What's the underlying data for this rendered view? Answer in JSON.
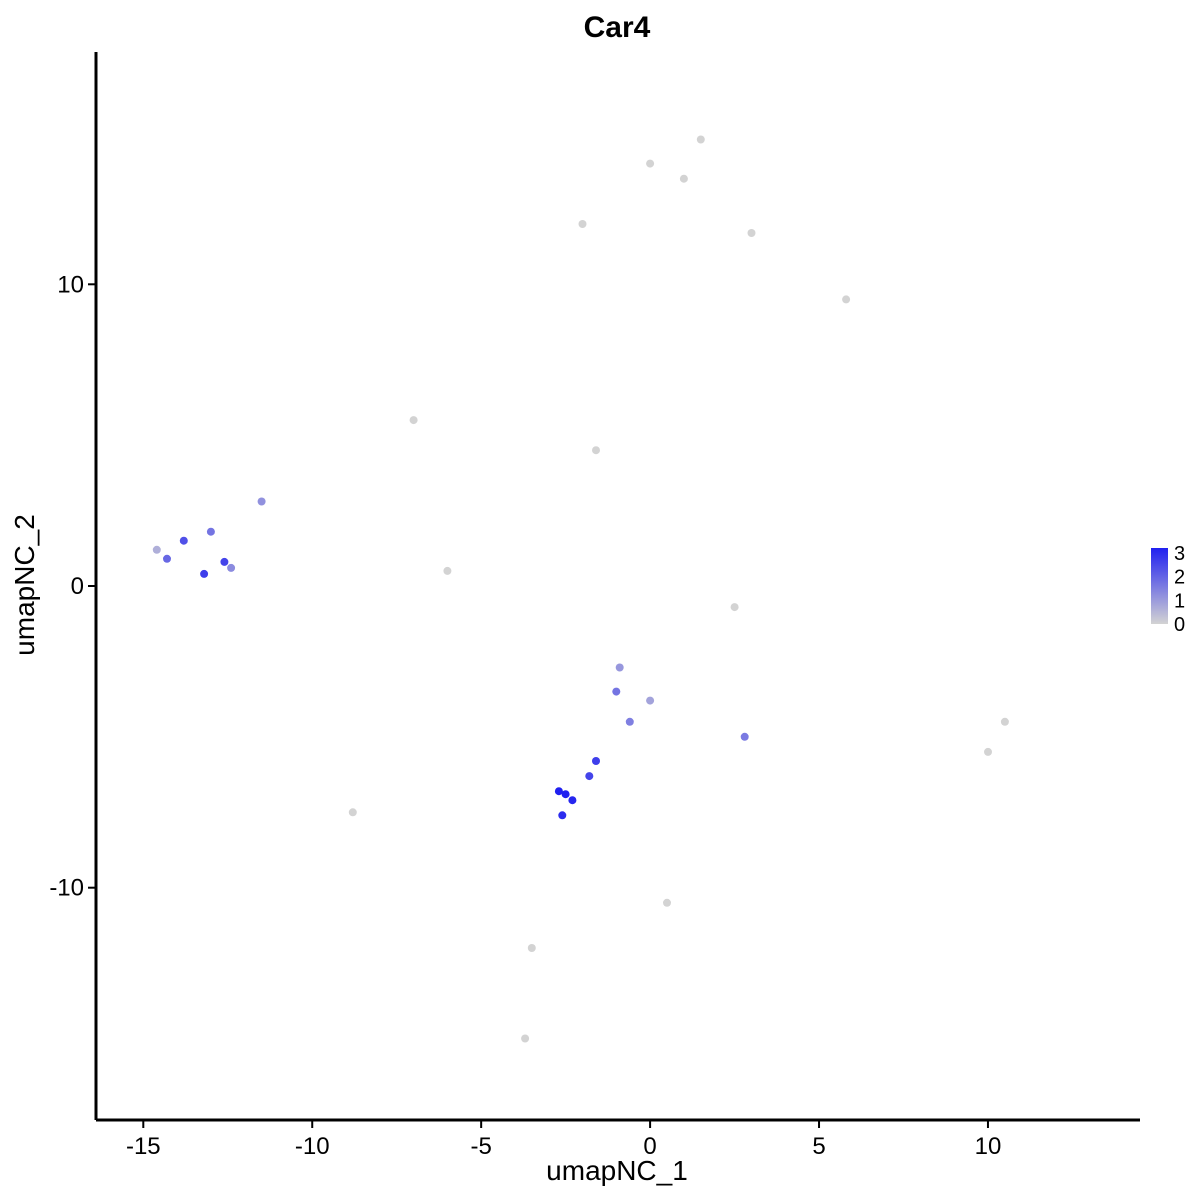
{
  "chart_data": {
    "type": "scatter",
    "title": "Car4",
    "xlabel": "umapNC_1",
    "ylabel": "umapNC_2",
    "xlim": [
      -16.4,
      14.5
    ],
    "ylim": [
      -17.7,
      17.7
    ],
    "x_ticks": [
      -15,
      -10,
      -5,
      0,
      5,
      10
    ],
    "y_ticks": [
      -10,
      0,
      10
    ],
    "x_tick_labels": [
      "-15",
      "-10",
      "-5",
      "0",
      "5",
      "10"
    ],
    "y_tick_labels": [
      "-10",
      "0",
      "10"
    ],
    "grid": false,
    "legend": {
      "placement": "right",
      "type": "colorbar",
      "labels": [
        "3",
        "2",
        "1",
        "0"
      ],
      "values": [
        3,
        2,
        1,
        0
      ],
      "low_color": "#d3d3d3",
      "high_color": "#2020f0"
    },
    "colors": {
      "low": "#d3d3d3",
      "high": "#2020f0"
    },
    "series": [
      {
        "points": [
          [
            -14.3,
            0.9,
            1.8
          ],
          [
            -13.8,
            1.5,
            2.2
          ],
          [
            -13.2,
            0.4,
            2.5
          ],
          [
            -13.0,
            1.8,
            1.6
          ],
          [
            -12.6,
            0.8,
            2.4
          ],
          [
            -12.4,
            0.6,
            1.2
          ],
          [
            -11.5,
            2.8,
            1.1
          ],
          [
            -14.6,
            1.2,
            0.6
          ],
          [
            -2.5,
            -6.9,
            3.0
          ],
          [
            -2.7,
            -6.8,
            3.0
          ],
          [
            -2.3,
            -7.1,
            2.9
          ],
          [
            -2.6,
            -7.6,
            2.8
          ],
          [
            -1.6,
            -5.8,
            2.5
          ],
          [
            -1.8,
            -6.3,
            2.4
          ],
          [
            -1.0,
            -3.5,
            1.6
          ],
          [
            -0.6,
            -4.5,
            1.4
          ],
          [
            2.8,
            -5.0,
            1.5
          ],
          [
            -0.9,
            -2.7,
            1.0
          ],
          [
            0.0,
            -3.8,
            0.8
          ],
          [
            0.0,
            14.0,
            0
          ],
          [
            1.0,
            13.5,
            0
          ],
          [
            1.5,
            14.8,
            0
          ],
          [
            3.0,
            11.7,
            0
          ],
          [
            -2.0,
            12.0,
            0
          ],
          [
            5.8,
            9.5,
            0
          ],
          [
            10.5,
            -4.5,
            0
          ],
          [
            10.0,
            -5.5,
            0
          ],
          [
            -8.8,
            -7.5,
            0
          ],
          [
            -1.6,
            4.5,
            0
          ],
          [
            -6.0,
            0.5,
            0
          ],
          [
            2.5,
            -0.7,
            0
          ],
          [
            -7.0,
            5.5,
            0
          ],
          [
            -3.5,
            -12.0,
            0
          ],
          [
            -3.7,
            -15.0,
            0
          ],
          [
            0.5,
            -10.5,
            0
          ]
        ]
      }
    ]
  }
}
